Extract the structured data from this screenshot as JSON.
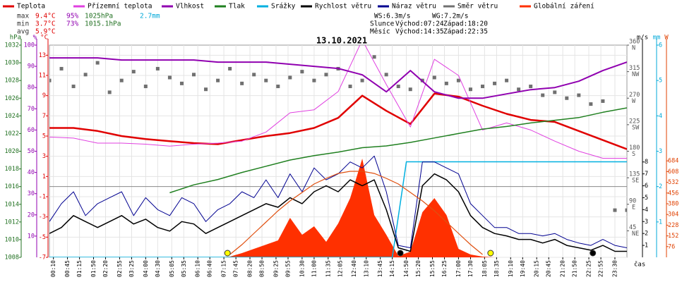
{
  "chart_data": {
    "type": "line",
    "title": "13.10.2021",
    "stats": {
      "max": {
        "label": "max",
        "temp": "9.4°C",
        "humidity": "95%",
        "pressure": "1025hPa",
        "rain": "2.7mm"
      },
      "min": {
        "label": "min",
        "temp": "3.7°C",
        "humidity": "73%",
        "pressure": "1015.1hPa"
      },
      "avg": {
        "label": "avg",
        "temp": "5.9°C"
      }
    },
    "astro": {
      "ws": "WS:6.3m/s",
      "wg": "WG:7.2m/s",
      "sun": {
        "label": "Slunce",
        "rise": "Východ:07:24",
        "set": "Západ:18:20"
      },
      "moon": {
        "label": "Měsíc",
        "rise": "Východ:14:35",
        "set": "Západ:22:35"
      }
    },
    "xlabel": "čas",
    "xlim": [
      0,
      1440
    ],
    "xticks": [
      {
        "value": 10,
        "label": "00:10"
      },
      {
        "value": 45,
        "label": "00:45"
      },
      {
        "value": 75,
        "label": "01:15"
      },
      {
        "value": 110,
        "label": "01:50"
      },
      {
        "value": 140,
        "label": "02:20"
      },
      {
        "value": 175,
        "label": "02:55"
      },
      {
        "value": 205,
        "label": "03:25"
      },
      {
        "value": 240,
        "label": "04:00"
      },
      {
        "value": 270,
        "label": "04:30"
      },
      {
        "value": 305,
        "label": "05:05"
      },
      {
        "value": 335,
        "label": "05:35"
      },
      {
        "value": 370,
        "label": "06:10"
      },
      {
        "value": 400,
        "label": "06:40"
      },
      {
        "value": 435,
        "label": "07:15"
      },
      {
        "value": 465,
        "label": "07:45"
      },
      {
        "value": 500,
        "label": "08:20"
      },
      {
        "value": 530,
        "label": "08:50"
      },
      {
        "value": 565,
        "label": "09:25"
      },
      {
        "value": 595,
        "label": "09:55"
      },
      {
        "value": 630,
        "label": "10:30"
      },
      {
        "value": 660,
        "label": "11:00"
      },
      {
        "value": 695,
        "label": "11:35"
      },
      {
        "value": 725,
        "label": "12:05"
      },
      {
        "value": 760,
        "label": "12:40"
      },
      {
        "value": 790,
        "label": "13:10"
      },
      {
        "value": 825,
        "label": "13:45"
      },
      {
        "value": 855,
        "label": "14:15"
      },
      {
        "value": 890,
        "label": "14:50"
      },
      {
        "value": 920,
        "label": "15:20"
      },
      {
        "value": 955,
        "label": "15:55"
      },
      {
        "value": 985,
        "label": "16:25"
      },
      {
        "value": 1020,
        "label": "17:00"
      },
      {
        "value": 1050,
        "label": "17:30"
      },
      {
        "value": 1085,
        "label": "18:05"
      },
      {
        "value": 1115,
        "label": "18:35"
      },
      {
        "value": 1150,
        "label": "19:10"
      },
      {
        "value": 1180,
        "label": "19:40"
      },
      {
        "value": 1215,
        "label": "20:15"
      },
      {
        "value": 1245,
        "label": "20:45"
      },
      {
        "value": 1280,
        "label": "21:20"
      },
      {
        "value": 1310,
        "label": "21:50"
      },
      {
        "value": 1345,
        "label": "22:25"
      },
      {
        "value": 1375,
        "label": "22:55"
      },
      {
        "value": 1410,
        "label": "23:30"
      }
    ],
    "grid": true,
    "axes": {
      "pressure": {
        "label": "hPa",
        "color": "#207020",
        "ylim": [
          1008,
          1032
        ],
        "yticks": [
          1008,
          1010,
          1012,
          1014,
          1016,
          1018,
          1020,
          1022,
          1024,
          1026,
          1028,
          1030,
          1032
        ]
      },
      "humidity": {
        "label": "%",
        "color": "#9000b0",
        "ylim": [
          0,
          100
        ],
        "yticks": [
          10,
          20,
          30,
          40,
          50,
          60,
          70,
          80,
          90,
          100
        ]
      },
      "temp": {
        "label": "°C",
        "color": "#e00000",
        "ylim": [
          -7,
          14
        ],
        "yticks": [
          -7,
          -5,
          -3,
          -1,
          1,
          3,
          5,
          7,
          9,
          11,
          13
        ]
      },
      "direction": {
        "color": "#555555",
        "ylim": [
          0,
          360
        ],
        "yticks": [
          45,
          90,
          135,
          180,
          225,
          270,
          315,
          360
        ],
        "ytick_names": [
          "NE",
          "E",
          "SE",
          "S",
          "SW",
          "W",
          "NW",
          "N"
        ]
      },
      "wind": {
        "label": "m/s",
        "color": "#000000",
        "ylim": [
          0,
          17.8
        ],
        "yticks": [
          1,
          2,
          3,
          4,
          5,
          6,
          7,
          8
        ]
      },
      "rain": {
        "label": "mm",
        "color": "#00a8d8",
        "ylim": [
          0,
          6
        ],
        "yticks": [
          1,
          2,
          3,
          4,
          5,
          6
        ]
      },
      "radiation": {
        "label": "W",
        "color": "#e04000",
        "ylim": [
          0,
          1505
        ],
        "yticks": [
          76,
          152,
          228,
          304,
          380,
          456,
          532,
          608,
          684
        ]
      }
    },
    "series": [
      {
        "name": "Teplota",
        "color": "#e00000",
        "axis": "temp",
        "kind": "line",
        "width": 2.5,
        "x": [
          0,
          60,
          120,
          180,
          240,
          300,
          360,
          420,
          480,
          540,
          600,
          660,
          720,
          780,
          840,
          900,
          960,
          1020,
          1080,
          1140,
          1200,
          1260,
          1320,
          1380,
          1440
        ],
        "values": [
          5.8,
          5.8,
          5.5,
          5.0,
          4.7,
          4.5,
          4.3,
          4.2,
          4.6,
          5.0,
          5.3,
          5.8,
          6.8,
          9.0,
          7.5,
          6.2,
          9.2,
          8.9,
          8.0,
          7.2,
          6.6,
          6.4,
          5.5,
          4.6,
          3.7
        ]
      },
      {
        "name": "Přízemní teplota",
        "color": "#e040e0",
        "axis": "temp",
        "kind": "line",
        "width": 1,
        "x": [
          0,
          60,
          120,
          180,
          240,
          300,
          360,
          420,
          480,
          540,
          600,
          660,
          720,
          780,
          840,
          900,
          960,
          1020,
          1080,
          1140,
          1200,
          1260,
          1320,
          1380,
          1440
        ],
        "values": [
          4.9,
          4.8,
          4.3,
          4.3,
          4.2,
          4.0,
          4.2,
          4.3,
          4.5,
          5.4,
          7.3,
          7.6,
          9.4,
          14.5,
          10.1,
          5.9,
          12.6,
          11.0,
          5.6,
          6.3,
          5.6,
          4.5,
          3.5,
          2.8,
          2.8
        ]
      },
      {
        "name": "Vlhkost",
        "color": "#9000b0",
        "axis": "humidity",
        "kind": "line",
        "width": 2,
        "x": [
          0,
          60,
          120,
          180,
          240,
          300,
          360,
          420,
          480,
          540,
          600,
          660,
          720,
          780,
          840,
          900,
          960,
          1020,
          1080,
          1140,
          1200,
          1260,
          1320,
          1380,
          1440
        ],
        "values": [
          94,
          94,
          94,
          93,
          93,
          93,
          93,
          92,
          92,
          92,
          91,
          90,
          89,
          86,
          78,
          88,
          78,
          75,
          75,
          77,
          79,
          80,
          83,
          88,
          92
        ]
      },
      {
        "name": "Tlak",
        "color": "#208020",
        "axis": "pressure",
        "kind": "line",
        "width": 1.5,
        "x": [
          0,
          60,
          120,
          180,
          240,
          300,
          360,
          420,
          480,
          540,
          600,
          660,
          720,
          780,
          840,
          900,
          960,
          1020,
          1080,
          1140,
          1200,
          1260,
          1320,
          1380,
          1440
        ],
        "values": [
          null,
          null,
          null,
          null,
          null,
          1015.3,
          1016.2,
          1016.8,
          1017.6,
          1018.3,
          1019.0,
          1019.5,
          1019.9,
          1020.4,
          1020.6,
          1021.0,
          1021.5,
          1022.0,
          1022.5,
          1022.8,
          1023.2,
          1023.5,
          1023.8,
          1024.4,
          1024.9
        ]
      },
      {
        "name": "Srážky",
        "color": "#00b0e0",
        "axis": "rain",
        "kind": "line",
        "width": 1.5,
        "x": [
          0,
          855,
          890,
          1440
        ],
        "values": [
          0,
          0,
          2.7,
          2.7
        ]
      },
      {
        "name": "Rychlost větru",
        "color": "#000000",
        "axis": "wind",
        "kind": "line",
        "width": 1.5,
        "x": [
          0,
          30,
          60,
          90,
          120,
          150,
          180,
          210,
          240,
          270,
          300,
          330,
          360,
          390,
          420,
          450,
          480,
          510,
          540,
          570,
          600,
          630,
          660,
          690,
          720,
          750,
          780,
          810,
          840,
          870,
          900,
          930,
          960,
          990,
          1020,
          1050,
          1080,
          1110,
          1140,
          1170,
          1200,
          1230,
          1260,
          1290,
          1320,
          1350,
          1380,
          1410,
          1440
        ],
        "values": [
          2.0,
          2.5,
          3.5,
          3.0,
          2.5,
          3.0,
          3.5,
          2.8,
          3.2,
          2.5,
          2.2,
          3.0,
          2.8,
          2.0,
          2.5,
          3.0,
          3.5,
          4.0,
          4.5,
          4.2,
          5.0,
          4.5,
          5.5,
          6.0,
          5.5,
          6.5,
          6.0,
          6.5,
          4.0,
          0.8,
          0.5,
          6.0,
          7.0,
          6.5,
          5.5,
          3.5,
          2.5,
          2.0,
          1.8,
          1.5,
          1.5,
          1.2,
          1.5,
          1.0,
          0.8,
          0.6,
          1.0,
          0.5,
          0.5
        ]
      },
      {
        "name": "Náraz větru",
        "color": "#000090",
        "axis": "wind",
        "kind": "line",
        "width": 1,
        "x": [
          0,
          30,
          60,
          90,
          120,
          150,
          180,
          210,
          240,
          270,
          300,
          330,
          360,
          390,
          420,
          450,
          480,
          510,
          540,
          570,
          600,
          630,
          660,
          690,
          720,
          750,
          780,
          810,
          840,
          870,
          900,
          930,
          960,
          990,
          1020,
          1050,
          1080,
          1110,
          1140,
          1170,
          1200,
          1230,
          1260,
          1290,
          1320,
          1350,
          1380,
          1410,
          1440
        ],
        "values": [
          3.0,
          4.5,
          5.5,
          3.5,
          4.5,
          5.0,
          5.5,
          3.5,
          5.0,
          4.0,
          3.5,
          5.0,
          4.5,
          3.0,
          4.0,
          4.5,
          5.5,
          5.0,
          6.5,
          5.0,
          7.0,
          5.5,
          7.5,
          6.5,
          7.0,
          8.0,
          7.5,
          8.5,
          5.5,
          1.0,
          0.8,
          8.0,
          8.0,
          7.5,
          7.0,
          4.5,
          3.5,
          2.5,
          2.5,
          2.0,
          2.0,
          1.8,
          2.0,
          1.5,
          1.2,
          1.0,
          1.5,
          1.0,
          0.8
        ]
      },
      {
        "name": "Směr větru",
        "color": "#707070",
        "axis": "direction",
        "kind": "points",
        "x": [
          0,
          30,
          60,
          90,
          120,
          150,
          180,
          210,
          240,
          270,
          300,
          330,
          360,
          390,
          420,
          450,
          480,
          510,
          540,
          570,
          600,
          630,
          660,
          690,
          720,
          750,
          780,
          810,
          840,
          870,
          900,
          930,
          960,
          990,
          1020,
          1050,
          1080,
          1110,
          1140,
          1170,
          1200,
          1230,
          1260,
          1290,
          1320,
          1350,
          1380,
          1410,
          1440
        ],
        "values": [
          300,
          320,
          290,
          310,
          330,
          280,
          300,
          315,
          290,
          320,
          305,
          295,
          310,
          285,
          300,
          320,
          295,
          310,
          300,
          290,
          305,
          315,
          300,
          310,
          320,
          290,
          300,
          340,
          310,
          290,
          285,
          300,
          305,
          295,
          300,
          285,
          290,
          295,
          300,
          285,
          290,
          275,
          280,
          270,
          275,
          260,
          265,
          80,
          80
        ]
      },
      {
        "name": "Globální záření",
        "color": "#ff3000",
        "axis": "radiation",
        "kind": "area",
        "x": [
          0,
          30,
          60,
          90,
          120,
          150,
          180,
          210,
          240,
          270,
          300,
          330,
          360,
          390,
          420,
          450,
          480,
          510,
          540,
          570,
          600,
          630,
          660,
          690,
          720,
          750,
          780,
          810,
          840,
          870,
          900,
          930,
          960,
          990,
          1020,
          1050,
          1080,
          1110,
          1140,
          1170,
          1200,
          1230,
          1260,
          1290,
          1320,
          1350,
          1380,
          1410,
          1440
        ],
        "values": [
          0,
          0,
          0,
          0,
          0,
          0,
          0,
          0,
          0,
          0,
          0,
          0,
          0,
          0,
          0,
          5,
          30,
          60,
          90,
          120,
          280,
          160,
          220,
          110,
          240,
          420,
          700,
          300,
          160,
          10,
          40,
          320,
          420,
          300,
          60,
          20,
          5,
          0,
          0,
          0,
          0,
          0,
          0,
          0,
          0,
          0,
          0,
          0,
          0
        ]
      }
    ],
    "clear_sky": {
      "color": "#e05010",
      "axis": "radiation",
      "x": [
        0,
        30,
        60,
        90,
        120,
        150,
        180,
        210,
        240,
        270,
        300,
        330,
        360,
        390,
        420,
        450,
        480,
        510,
        540,
        570,
        600,
        630,
        660,
        690,
        720,
        750,
        780,
        810,
        840,
        870,
        900,
        930,
        960,
        990,
        1020,
        1050,
        1080,
        1110,
        1140,
        1170,
        1200,
        1230,
        1260,
        1290,
        1320,
        1350,
        1380,
        1410,
        1440
      ],
      "values": [
        null,
        null,
        null,
        null,
        null,
        null,
        null,
        null,
        null,
        null,
        null,
        null,
        null,
        null,
        null,
        20,
        90,
        170,
        250,
        330,
        400,
        460,
        520,
        560,
        595,
        610,
        610,
        595,
        560,
        520,
        460,
        400,
        330,
        250,
        170,
        90,
        20,
        null,
        null,
        null,
        null,
        null,
        null,
        null,
        null,
        null,
        null,
        null,
        null
      ]
    },
    "sun_markers": [
      444,
      1100
    ],
    "moon_markers": [
      875,
      1355
    ]
  }
}
